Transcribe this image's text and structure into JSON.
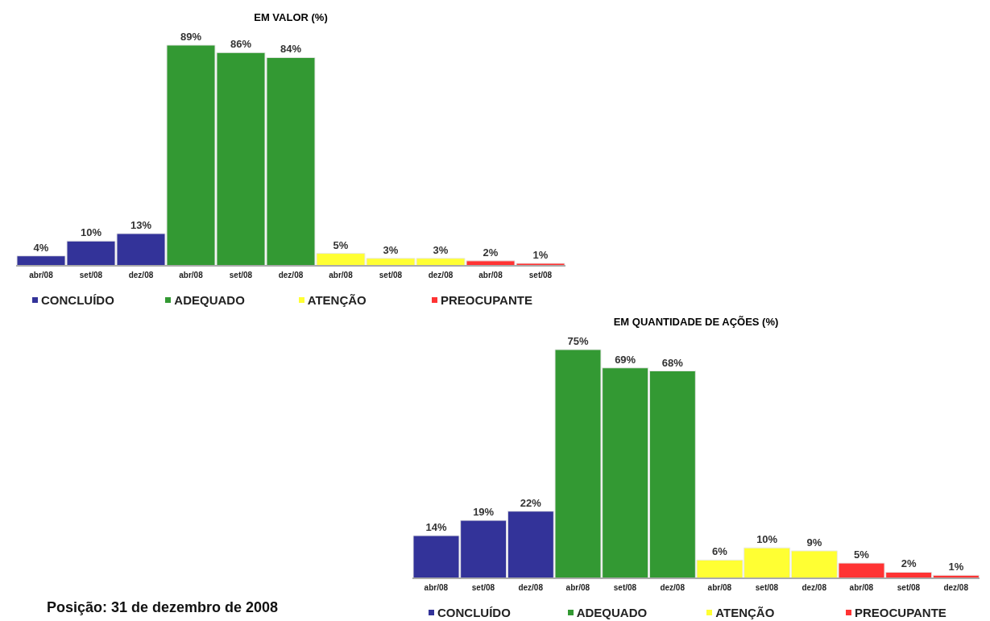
{
  "chart_data": [
    {
      "type": "bar",
      "title": "EM VALOR (%)",
      "categories": [
        "abr/08",
        "set/08",
        "dez/08",
        "abr/08",
        "set/08",
        "dez/08",
        "abr/08",
        "set/08",
        "dez/08",
        "abr/08",
        "set/08"
      ],
      "series": [
        {
          "name": "CONCLUÍDO",
          "color": "#333399",
          "values": [
            4,
            10,
            13,
            null,
            null,
            null,
            null,
            null,
            null,
            null,
            null
          ],
          "value_labels": [
            "4%",
            "10%",
            "13%",
            null,
            null,
            null,
            null,
            null,
            null,
            null,
            null
          ]
        },
        {
          "name": "ADEQUADO",
          "color": "#339933",
          "values": [
            null,
            null,
            null,
            89,
            86,
            84,
            null,
            null,
            null,
            null,
            null
          ],
          "value_labels": [
            null,
            null,
            null,
            "89%",
            "86%",
            "84%",
            null,
            null,
            null,
            null,
            null
          ]
        },
        {
          "name": "ATENÇÃO",
          "color": "#ffff33",
          "values": [
            null,
            null,
            null,
            null,
            null,
            null,
            5,
            3,
            3,
            null,
            null
          ],
          "value_labels": [
            null,
            null,
            null,
            null,
            null,
            null,
            "5%",
            "3%",
            "3%",
            null,
            null
          ]
        },
        {
          "name": "PREOCUPANTE",
          "color": "#ff3333",
          "values": [
            null,
            null,
            null,
            null,
            null,
            null,
            null,
            null,
            null,
            2,
            1
          ],
          "value_labels": [
            null,
            null,
            null,
            null,
            null,
            null,
            null,
            null,
            null,
            "2%",
            "1%"
          ]
        }
      ],
      "legend": "bottom",
      "grid": false
    },
    {
      "type": "bar",
      "title": "EM QUANTIDADE DE AÇÕES (%)",
      "categories": [
        "abr/08",
        "set/08",
        "dez/08",
        "abr/08",
        "set/08",
        "dez/08",
        "abr/08",
        "set/08",
        "dez/08",
        "abr/08",
        "set/08",
        "dez/08"
      ],
      "series": [
        {
          "name": "CONCLUÍDO",
          "color": "#333399",
          "values": [
            14,
            19,
            22,
            null,
            null,
            null,
            null,
            null,
            null,
            null,
            null,
            null
          ],
          "value_labels": [
            "14%",
            "19%",
            "22%",
            null,
            null,
            null,
            null,
            null,
            null,
            null,
            null,
            null
          ]
        },
        {
          "name": "ADEQUADO",
          "color": "#339933",
          "values": [
            null,
            null,
            null,
            75,
            69,
            68,
            null,
            null,
            null,
            null,
            null,
            null
          ],
          "value_labels": [
            null,
            null,
            null,
            "75%",
            "69%",
            "68%",
            null,
            null,
            null,
            null,
            null,
            null
          ]
        },
        {
          "name": "ATENÇÃO",
          "color": "#ffff33",
          "values": [
            null,
            null,
            null,
            null,
            null,
            null,
            6,
            10,
            9,
            null,
            null,
            null
          ],
          "value_labels": [
            null,
            null,
            null,
            null,
            null,
            null,
            "6%",
            "10%",
            "9%",
            null,
            null,
            null
          ]
        },
        {
          "name": "PREOCUPANTE",
          "color": "#ff3333",
          "values": [
            null,
            null,
            null,
            null,
            null,
            null,
            null,
            null,
            null,
            5,
            2,
            1
          ],
          "value_labels": [
            null,
            null,
            null,
            null,
            null,
            null,
            null,
            null,
            null,
            "5%",
            "2%",
            "1%"
          ]
        }
      ],
      "legend": "bottom",
      "grid": false,
      "annotations": [
        "Posição: 31 de dezembro de 2008"
      ]
    }
  ]
}
